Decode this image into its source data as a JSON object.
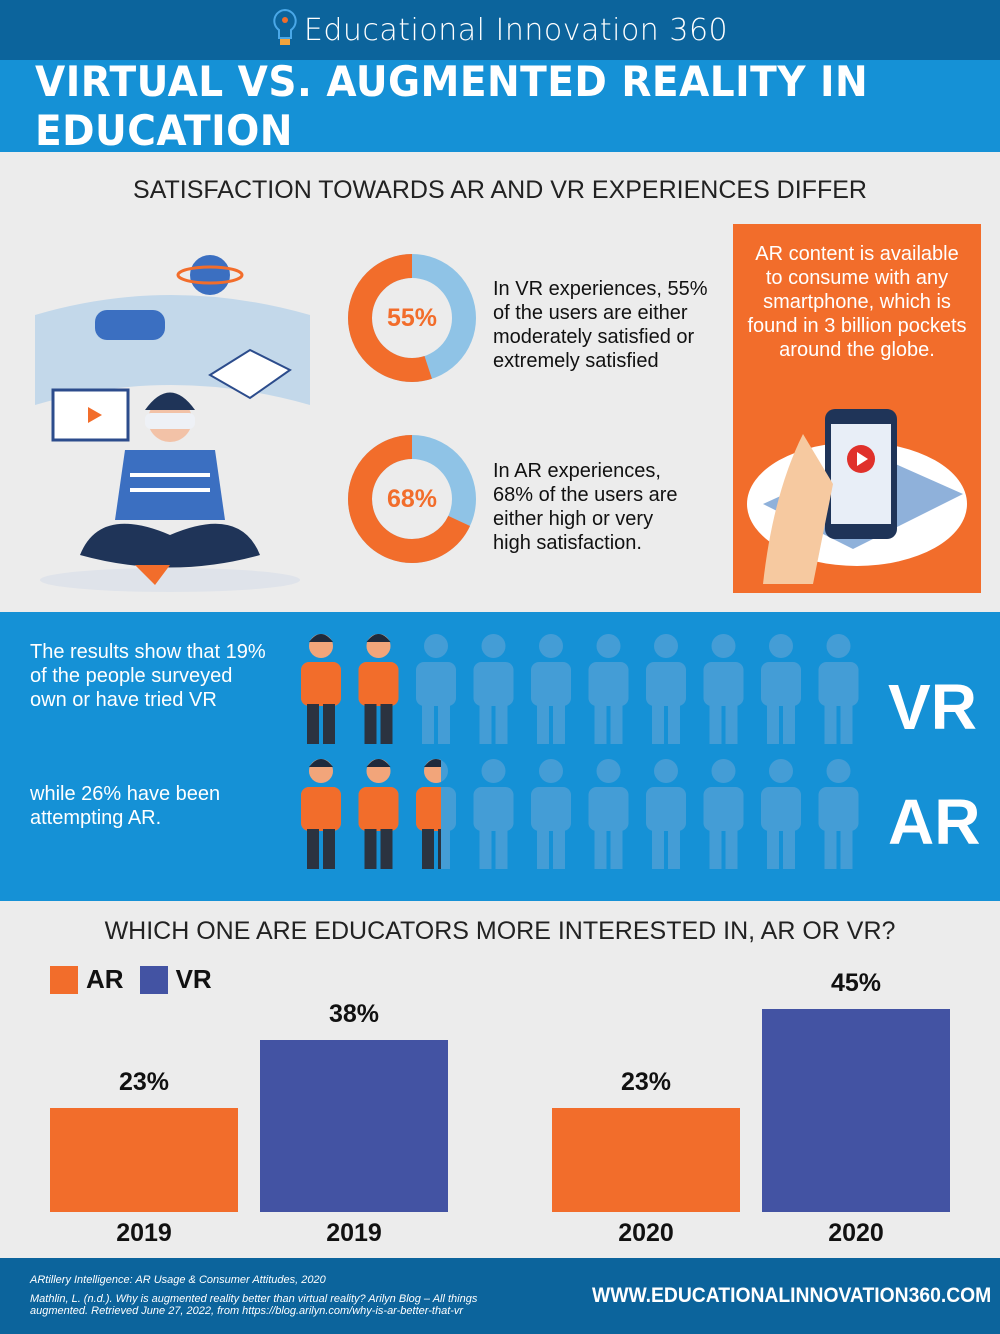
{
  "header": {
    "brand": "Educational Innovation 360"
  },
  "title": "VIRTUAL VS. AUGMENTED REALITY IN EDUCATION",
  "satisfaction": {
    "heading": "SATISFACTION TOWARDS AR AND VR EXPERIENCES DIFFER",
    "vr": {
      "percent": 55,
      "label": "55%",
      "text": [
        "In VR experiences, 55%",
        "of the users are either",
        "moderately satisfied or",
        "extremely satisfied"
      ]
    },
    "ar": {
      "percent": 68,
      "label": "68%",
      "text": [
        "In AR experiences,",
        "68% of the users are",
        "either high or very",
        "high satisfaction."
      ]
    },
    "callout": "AR content is available to consume with any smartphone, which is found in 3 billion pockets around the globe."
  },
  "adoption": {
    "vr_text": [
      "The results show that 19%",
      "of the people surveyed",
      "own or have tried VR"
    ],
    "ar_text": [
      "while 26% have been",
      "attempting AR."
    ],
    "vr_label": "VR",
    "ar_label": "AR",
    "vr_percent": 19,
    "ar_percent": 26
  },
  "chart_data": {
    "type": "bar",
    "title": "WHICH ONE ARE EDUCATORS MORE INTERESTED IN, AR OR VR?",
    "categories": [
      "2019",
      "2019",
      "2020",
      "2020"
    ],
    "legend": [
      {
        "name": "AR",
        "color": "#f26d2b"
      },
      {
        "name": "VR",
        "color": "#4353a3"
      }
    ],
    "series": [
      {
        "name": "AR",
        "values": [
          {
            "year": "2019",
            "value": 23
          },
          {
            "year": "2020",
            "value": 23
          }
        ]
      },
      {
        "name": "VR",
        "values": [
          {
            "year": "2019",
            "value": 38
          },
          {
            "year": "2020",
            "value": 45
          }
        ]
      }
    ],
    "data_labels": [
      "23%",
      "38%",
      "23%",
      "45%"
    ],
    "legend_position": "top-left",
    "grid": false
  },
  "footer": {
    "citations": [
      "ARtillery Intelligence: AR Usage & Consumer Attitudes, 2020",
      "Mathlin, L. (n.d.). Why is augmented reality better than virtual reality? Arilyn Blog – All things augmented. Retrieved June 27, 2022, from https://blog.arilyn.com/why-is-ar-better-that-vr"
    ],
    "url": "WWW.EDUCATIONALINNOVATION360.COM"
  },
  "colors": {
    "orange": "#f26d2b",
    "vr_blue": "#4353a3",
    "band_blue": "#1591d6",
    "dark_blue": "#0c649c",
    "donut_light": "#8fc3e6"
  }
}
